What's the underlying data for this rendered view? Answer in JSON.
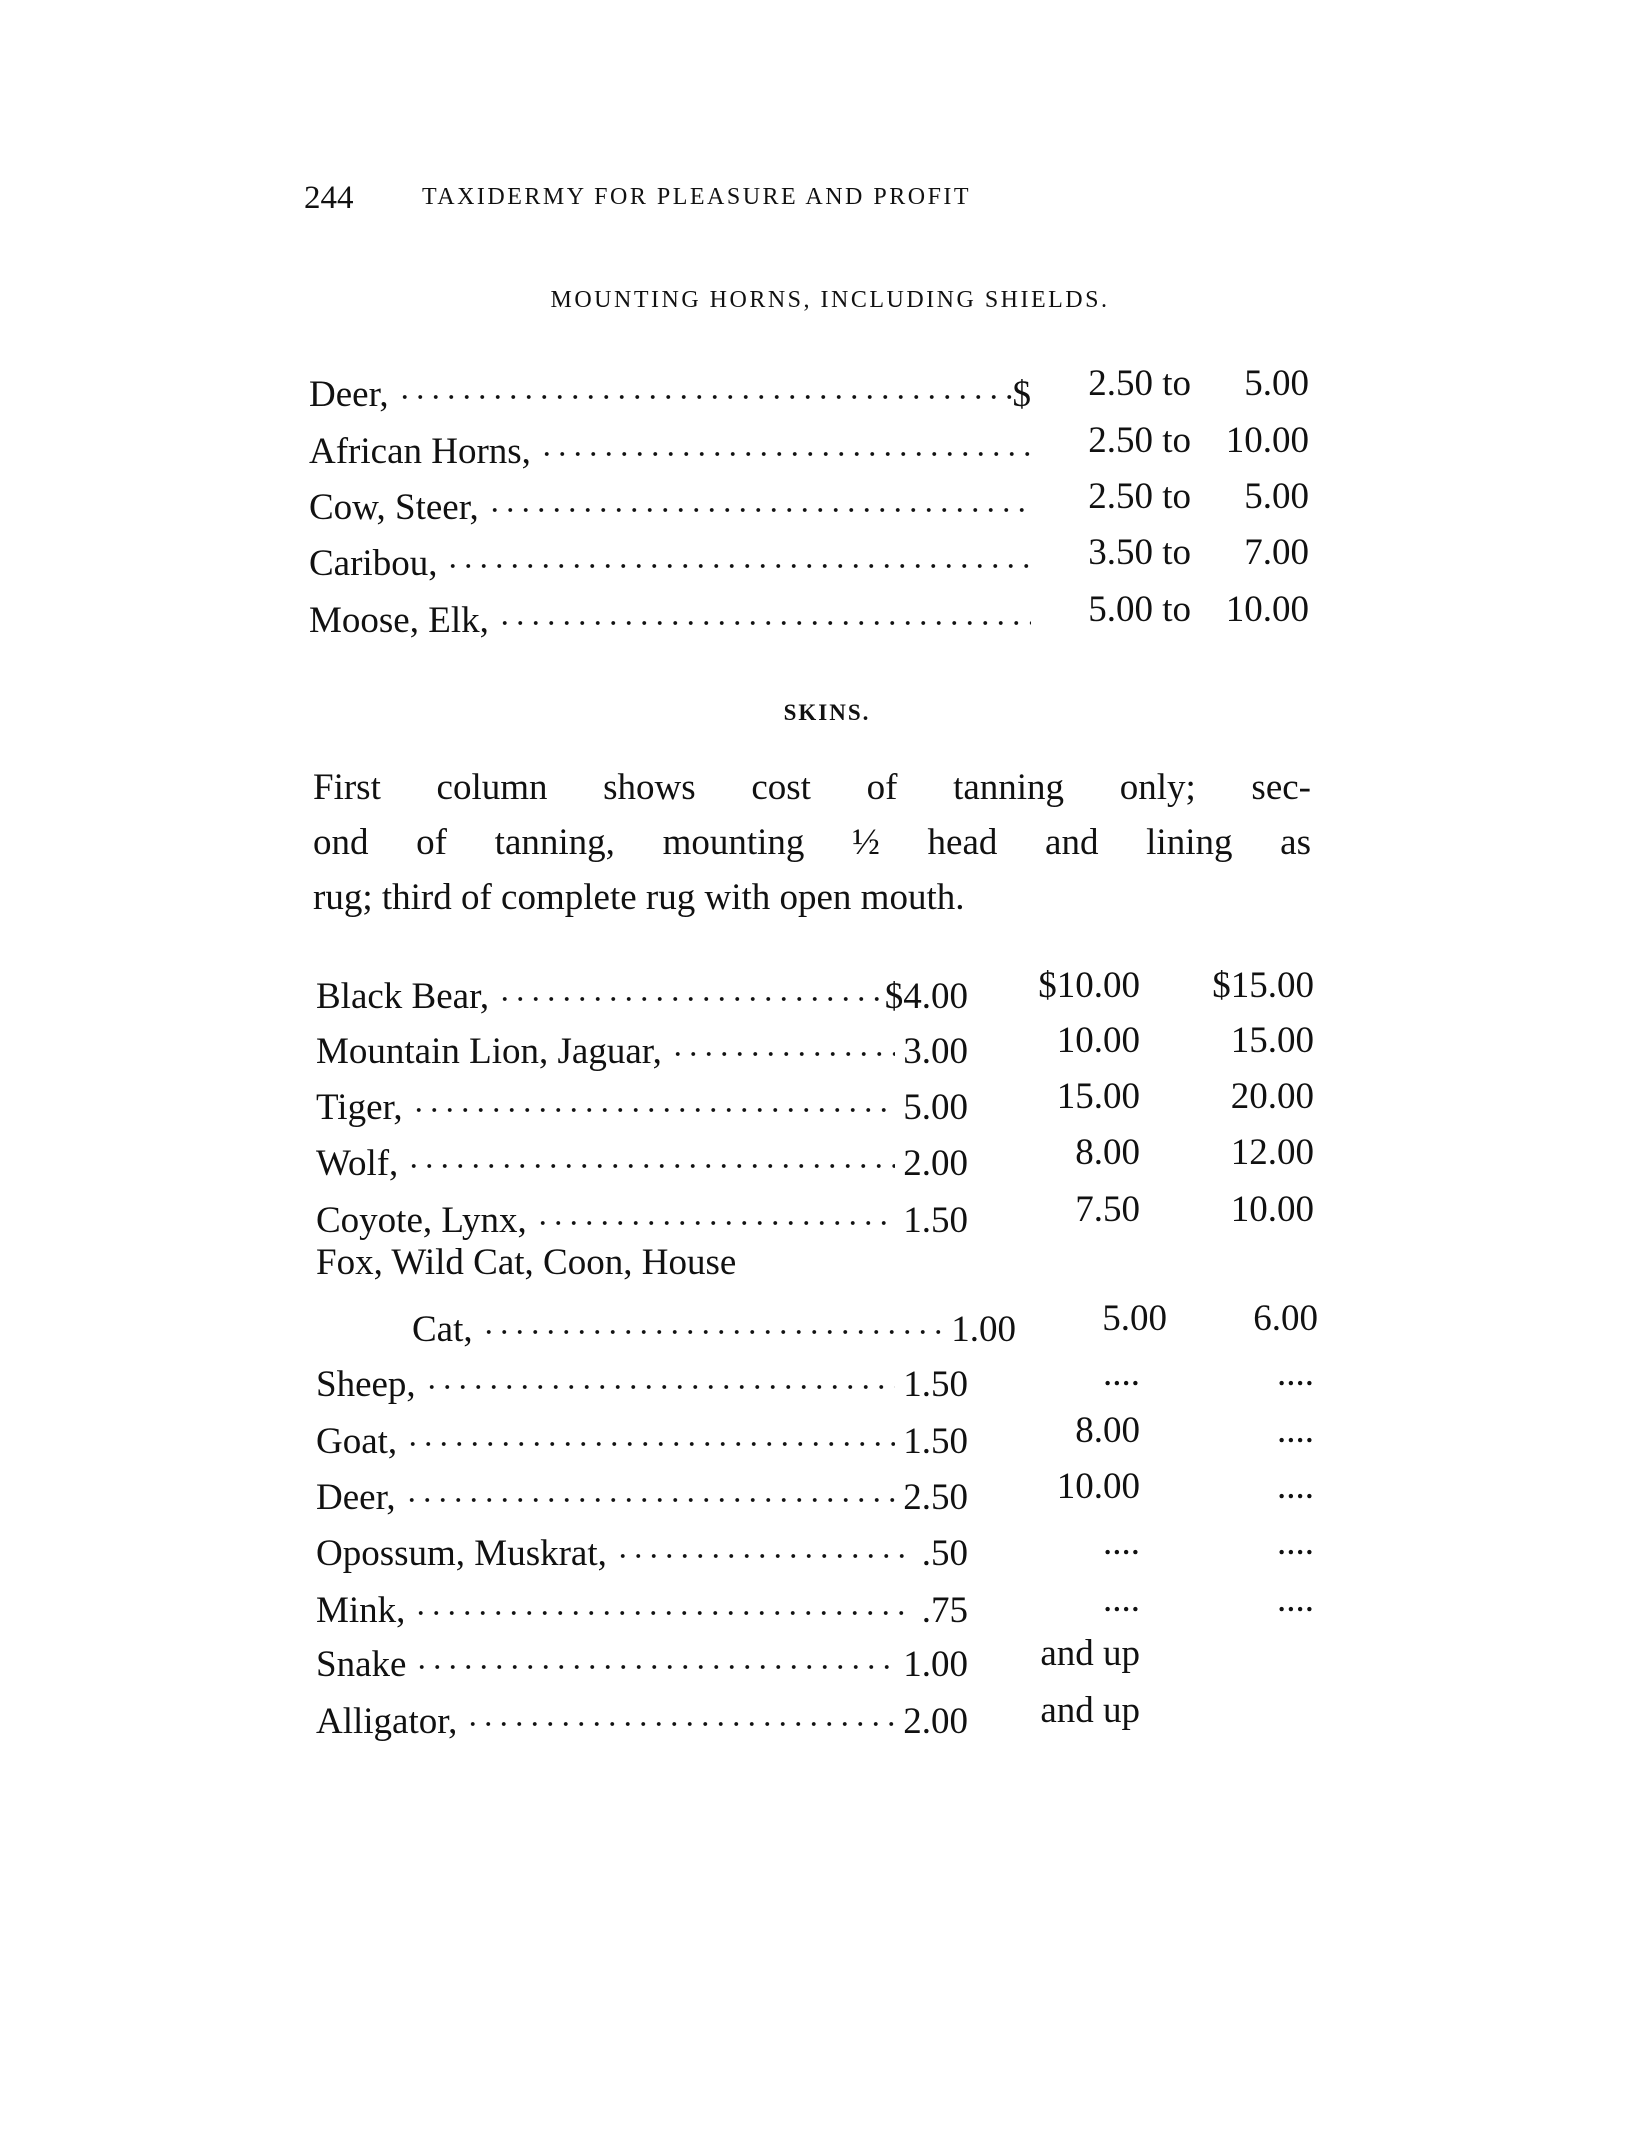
{
  "header": {
    "page_number": "244",
    "running_title": "TAXIDERMY FOR PLEASURE AND PROFIT"
  },
  "horns": {
    "title": "MOUNTING HORNS, INCLUDING SHIELDS.",
    "rows": [
      {
        "label": "Deer,",
        "currency": "$",
        "from": "2.50 to",
        "to": "5.00"
      },
      {
        "label": "African Horns,",
        "currency": "",
        "from": "2.50 to",
        "to": "10.00"
      },
      {
        "label": "Cow, Steer,",
        "currency": "",
        "from": "2.50 to",
        "to": "5.00"
      },
      {
        "label": "Caribou,",
        "currency": "",
        "from": "3.50 to",
        "to": "7.00"
      },
      {
        "label": "Moose, Elk,",
        "currency": "",
        "from": "5.00 to",
        "to": "10.00"
      }
    ]
  },
  "skins": {
    "title": "SKINS.",
    "intro_lines": [
      "First column shows cost of tanning only; sec-",
      "ond of tanning, mounting ½ head and lining as",
      "rug; third of complete rug with open mouth."
    ],
    "rows": [
      {
        "label": "Black Bear,",
        "c1": "$4.00",
        "c2": "$10.00",
        "c3": "$15.00"
      },
      {
        "label": "Mountain Lion, Jaguar,",
        "c1": "3.00",
        "c2": "10.00",
        "c3": "15.00"
      },
      {
        "label": "Tiger,",
        "c1": "5.00",
        "c2": "15.00",
        "c3": "20.00"
      },
      {
        "label": "Wolf,",
        "c1": "2.00",
        "c2": "8.00",
        "c3": "12.00"
      },
      {
        "label": "Coyote, Lynx,",
        "c1": "1.50",
        "c2": "7.50",
        "c3": "10.00"
      },
      {
        "label": "Fox, Wild Cat, Coon, House",
        "continuation": "Cat,",
        "c1": "1.00",
        "c2": "5.00",
        "c3": "6.00"
      },
      {
        "label": "Sheep,",
        "c1": "1.50",
        "c2": "....",
        "c3": "...."
      },
      {
        "label": "Goat,",
        "c1": "1.50",
        "c2": "8.00",
        "c3": "...."
      },
      {
        "label": "Deer,",
        "c1": "2.50",
        "c2": "10.00",
        "c3": "...."
      },
      {
        "label": "Opossum, Muskrat,",
        "c1": ".50",
        "c2": "....",
        "c3": "...."
      },
      {
        "label": "Mink,",
        "c1": ".75",
        "c2": "....",
        "c3": "...."
      },
      {
        "label": "Snake",
        "c1": "1.00",
        "c2": "and up",
        "c3": ""
      },
      {
        "label": "Alligator,",
        "c1": "2.00",
        "c2": "and up",
        "c3": ""
      }
    ]
  }
}
